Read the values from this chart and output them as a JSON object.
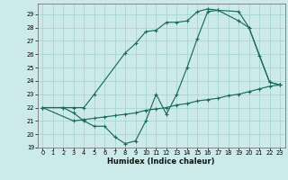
{
  "bg_color": "#cdeaea",
  "grid_color": "#a8d4d4",
  "line_color": "#1a6b5a",
  "xlabel": "Humidex (Indice chaleur)",
  "xlim": [
    -0.5,
    23.5
  ],
  "ylim": [
    19,
    29.8
  ],
  "yticks": [
    19,
    20,
    21,
    22,
    23,
    24,
    25,
    26,
    27,
    28,
    29
  ],
  "xticks": [
    0,
    1,
    2,
    3,
    4,
    5,
    6,
    7,
    8,
    9,
    10,
    11,
    12,
    13,
    14,
    15,
    16,
    17,
    18,
    19,
    20,
    21,
    22,
    23
  ],
  "curve1_x": [
    0,
    2,
    3,
    4,
    5,
    8,
    9,
    10,
    11,
    12,
    13,
    14,
    15,
    16,
    17,
    19,
    20,
    22,
    23
  ],
  "curve1_y": [
    22,
    22,
    22,
    22,
    23,
    26.1,
    26.8,
    27.7,
    27.8,
    28.4,
    28.4,
    28.5,
    29.2,
    29.4,
    29.3,
    29.2,
    28.0,
    23.9,
    23.7
  ],
  "curve2_x": [
    0,
    2,
    3,
    4,
    5,
    6,
    7,
    8,
    9,
    10,
    11,
    12,
    13,
    14,
    15,
    16,
    17,
    19,
    20,
    21,
    22,
    23
  ],
  "curve2_y": [
    22,
    22,
    21.6,
    21.0,
    20.6,
    20.6,
    19.8,
    19.3,
    19.5,
    21.0,
    23.0,
    21.5,
    23.0,
    25.0,
    27.2,
    29.2,
    29.3,
    28.5,
    28.0,
    25.9,
    23.9,
    23.7
  ],
  "curve3_x": [
    0,
    3,
    4,
    5,
    6,
    7,
    8,
    9,
    10,
    11,
    12,
    13,
    14,
    15,
    16,
    17,
    18,
    19,
    20,
    21,
    22,
    23
  ],
  "curve3_y": [
    22,
    21.0,
    21.1,
    21.2,
    21.3,
    21.4,
    21.5,
    21.6,
    21.8,
    21.9,
    22.0,
    22.2,
    22.3,
    22.5,
    22.6,
    22.7,
    22.9,
    23.0,
    23.2,
    23.4,
    23.6,
    23.7
  ]
}
